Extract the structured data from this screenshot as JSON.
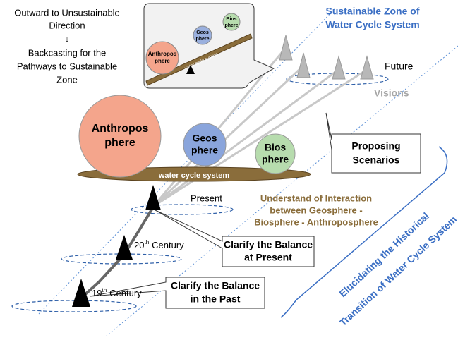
{
  "intro": {
    "lines": [
      "Outward to Unsustainable",
      "Direction",
      "↓",
      "Backcasting for the",
      "Pathways to Sustainable",
      "Zone"
    ]
  },
  "inset": {
    "anthroposphere": [
      "Anthropos",
      "phere"
    ],
    "geosphere": [
      "Geos",
      "phere"
    ],
    "biosphere": [
      "Bios",
      "phere"
    ],
    "plank": "water cycle system"
  },
  "sustainable_zone": [
    "Sustainable Zone of",
    "Water Cycle System"
  ],
  "future": "Future",
  "visions": "Visions",
  "main": {
    "anthroposphere": [
      "Anthropos",
      "phere"
    ],
    "geosphere": [
      "Geos",
      "phere"
    ],
    "biosphere": [
      "Bios",
      "phere"
    ],
    "plank": "water cycle system"
  },
  "proposing": [
    "Proposing",
    "Scenarios"
  ],
  "present": "Present",
  "interaction": [
    "Understand of Interaction",
    "between Geosphere -",
    "Biosphere - Anthroposphere"
  ],
  "century20": {
    "number": "20",
    "suffix": "th",
    "rest": "Century"
  },
  "clarify_present": [
    "Clarify the Balance",
    "at Present"
  ],
  "century19": {
    "number": "19",
    "suffix": "th",
    "rest": "Century"
  },
  "clarify_past": [
    "Clarify the Balance",
    "in the Past"
  ],
  "elucidating": [
    "Elucidating the Historical",
    "Transition of Water Cycle System"
  ]
}
